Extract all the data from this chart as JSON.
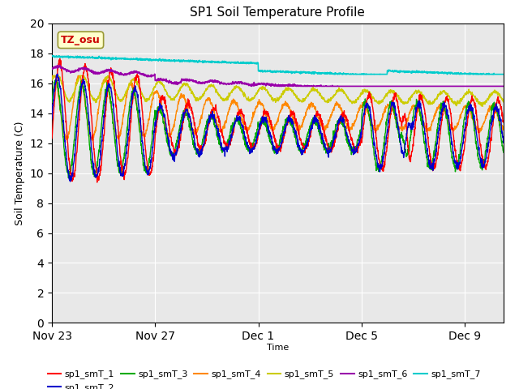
{
  "title": "SP1 Soil Temperature Profile",
  "xlabel": "Time",
  "ylabel": "Soil Temperature (C)",
  "ylim": [
    0,
    20
  ],
  "yticks": [
    0,
    2,
    4,
    6,
    8,
    10,
    12,
    14,
    16,
    18,
    20
  ],
  "xlim_days": [
    0,
    17.5
  ],
  "xtick_labels": [
    "Nov 23",
    "Nov 27",
    "Dec 1",
    "Dec 5",
    "Dec 9"
  ],
  "xtick_positions": [
    0,
    4,
    8,
    12,
    16
  ],
  "bg_color": "#e8e8e8",
  "fig_bg": "#ffffff",
  "grid_color": "#ffffff",
  "annotation_text": "TZ_osu",
  "annotation_color": "#cc0000",
  "annotation_bg": "#ffffcc",
  "series_colors": {
    "sp1_smT_1": "#ff0000",
    "sp1_smT_2": "#0000cc",
    "sp1_smT_3": "#00aa00",
    "sp1_smT_4": "#ff8800",
    "sp1_smT_5": "#cccc00",
    "sp1_smT_6": "#9900aa",
    "sp1_smT_7": "#00cccc"
  }
}
